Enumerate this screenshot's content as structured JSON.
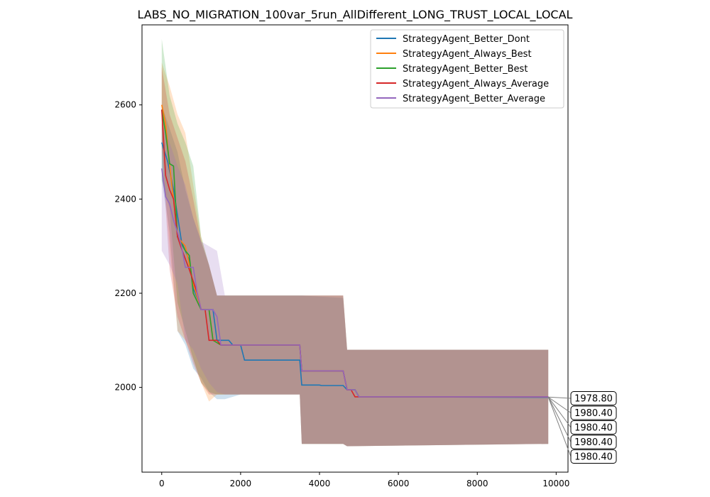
{
  "chart_data": {
    "type": "line",
    "title": "LABS_NO_MIGRATION_100var_5run_AllDifferent_LONG_TRUST_LOCAL_LOCAL",
    "xlabel": "",
    "ylabel": "",
    "xlim": [
      -500,
      10300
    ],
    "ylim": [
      1820,
      2770
    ],
    "xticks": [
      0,
      2000,
      4000,
      6000,
      8000,
      10000
    ],
    "yticks": [
      2000,
      2200,
      2400,
      2600
    ],
    "grid": false,
    "legend_position": "top-right",
    "series": [
      {
        "name": "StrategyAgent_Better_Dont",
        "color": "#1f77b4",
        "points": [
          [
            0,
            2520
          ],
          [
            150,
            2480
          ],
          [
            300,
            2420
          ],
          [
            500,
            2310
          ],
          [
            700,
            2270
          ],
          [
            800,
            2210
          ],
          [
            950,
            2180
          ],
          [
            1000,
            2165
          ],
          [
            1300,
            2165
          ],
          [
            1400,
            2100
          ],
          [
            1700,
            2100
          ],
          [
            1800,
            2090
          ],
          [
            2000,
            2090
          ],
          [
            2100,
            2058
          ],
          [
            3500,
            2058
          ],
          [
            3550,
            2005
          ],
          [
            4000,
            2005
          ],
          [
            4050,
            2004
          ],
          [
            4600,
            2004
          ],
          [
            4700,
            1995
          ],
          [
            4900,
            1995
          ],
          [
            5000,
            1980
          ],
          [
            9800,
            1979
          ]
        ],
        "band": [
          [
            0,
            2440,
            2600
          ],
          [
            200,
            2330,
            2550
          ],
          [
            400,
            2120,
            2500
          ],
          [
            600,
            2090,
            2420
          ],
          [
            800,
            2040,
            2360
          ],
          [
            1000,
            2020,
            2310
          ],
          [
            1200,
            1990,
            2260
          ],
          [
            1400,
            1975,
            2195
          ],
          [
            1600,
            1975,
            2195
          ],
          [
            2000,
            1985,
            2195
          ],
          [
            3500,
            1985,
            2195
          ],
          [
            3550,
            1880,
            2195
          ],
          [
            4600,
            1880,
            2190
          ],
          [
            4700,
            1875,
            2080
          ],
          [
            9800,
            1880,
            2080
          ]
        ]
      },
      {
        "name": "StrategyAgent_Always_Best",
        "color": "#ff7f0e",
        "points": [
          [
            0,
            2600
          ],
          [
            100,
            2560
          ],
          [
            200,
            2470
          ],
          [
            300,
            2400
          ],
          [
            400,
            2320
          ],
          [
            600,
            2300
          ],
          [
            800,
            2220
          ],
          [
            1000,
            2165
          ],
          [
            1200,
            2165
          ],
          [
            1300,
            2100
          ],
          [
            1500,
            2090
          ],
          [
            3500,
            2090
          ],
          [
            3550,
            2035
          ],
          [
            4600,
            2035
          ],
          [
            4700,
            1995
          ],
          [
            4900,
            1995
          ],
          [
            5000,
            1980
          ],
          [
            9800,
            1980
          ]
        ],
        "band": [
          [
            0,
            2510,
            2690
          ],
          [
            200,
            2300,
            2640
          ],
          [
            400,
            2120,
            2580
          ],
          [
            600,
            2100,
            2540
          ],
          [
            800,
            2060,
            2430
          ],
          [
            1000,
            2010,
            2320
          ],
          [
            1200,
            1970,
            2260
          ],
          [
            1400,
            1985,
            2195
          ],
          [
            3500,
            1985,
            2195
          ],
          [
            3550,
            1880,
            2195
          ],
          [
            4600,
            1880,
            2195
          ],
          [
            4700,
            1875,
            2080
          ],
          [
            9800,
            1880,
            2080
          ]
        ]
      },
      {
        "name": "StrategyAgent_Better_Best",
        "color": "#2ca02c",
        "points": [
          [
            0,
            2590
          ],
          [
            100,
            2540
          ],
          [
            200,
            2475
          ],
          [
            300,
            2470
          ],
          [
            400,
            2320
          ],
          [
            600,
            2290
          ],
          [
            700,
            2280
          ],
          [
            800,
            2200
          ],
          [
            1000,
            2165
          ],
          [
            1200,
            2165
          ],
          [
            1300,
            2100
          ],
          [
            1500,
            2090
          ],
          [
            3500,
            2090
          ],
          [
            3550,
            2035
          ],
          [
            4600,
            2035
          ],
          [
            4700,
            1995
          ],
          [
            4900,
            1995
          ],
          [
            5000,
            1980
          ],
          [
            9800,
            1980
          ]
        ],
        "band": [
          [
            0,
            2440,
            2740
          ],
          [
            200,
            2380,
            2620
          ],
          [
            400,
            2180,
            2560
          ],
          [
            600,
            2120,
            2520
          ],
          [
            800,
            2060,
            2470
          ],
          [
            1000,
            2010,
            2320
          ],
          [
            1200,
            1990,
            2260
          ],
          [
            1400,
            1985,
            2195
          ],
          [
            3500,
            1985,
            2195
          ],
          [
            3550,
            1880,
            2195
          ],
          [
            4600,
            1880,
            2195
          ],
          [
            4700,
            1875,
            2080
          ],
          [
            9800,
            1880,
            2080
          ]
        ]
      },
      {
        "name": "StrategyAgent_Always_Average",
        "color": "#d62728",
        "points": [
          [
            0,
            2590
          ],
          [
            100,
            2450
          ],
          [
            200,
            2420
          ],
          [
            300,
            2400
          ],
          [
            400,
            2320
          ],
          [
            500,
            2295
          ],
          [
            700,
            2250
          ],
          [
            900,
            2200
          ],
          [
            1000,
            2165
          ],
          [
            1100,
            2165
          ],
          [
            1200,
            2100
          ],
          [
            1400,
            2100
          ],
          [
            1500,
            2090
          ],
          [
            3500,
            2090
          ],
          [
            3550,
            2035
          ],
          [
            4600,
            2035
          ],
          [
            4700,
            1995
          ],
          [
            4800,
            1995
          ],
          [
            4900,
            1980
          ],
          [
            9800,
            1980
          ]
        ],
        "band": [
          [
            0,
            2510,
            2680
          ],
          [
            200,
            2250,
            2580
          ],
          [
            400,
            2150,
            2530
          ],
          [
            600,
            2100,
            2480
          ],
          [
            800,
            2050,
            2400
          ],
          [
            1000,
            2010,
            2310
          ],
          [
            1200,
            1985,
            2260
          ],
          [
            1400,
            1985,
            2195
          ],
          [
            3500,
            1985,
            2195
          ],
          [
            3550,
            1880,
            2195
          ],
          [
            4600,
            1880,
            2195
          ],
          [
            4700,
            1875,
            2080
          ],
          [
            9800,
            1880,
            2080
          ]
        ]
      },
      {
        "name": "StrategyAgent_Better_Average",
        "color": "#9467bd",
        "points": [
          [
            0,
            2465
          ],
          [
            100,
            2405
          ],
          [
            200,
            2390
          ],
          [
            300,
            2355
          ],
          [
            400,
            2330
          ],
          [
            500,
            2300
          ],
          [
            600,
            2255
          ],
          [
            800,
            2255
          ],
          [
            900,
            2200
          ],
          [
            1000,
            2165
          ],
          [
            1300,
            2165
          ],
          [
            1400,
            2150
          ],
          [
            1500,
            2090
          ],
          [
            3500,
            2090
          ],
          [
            3550,
            2035
          ],
          [
            4600,
            2035
          ],
          [
            4700,
            1995
          ],
          [
            4900,
            1995
          ],
          [
            5000,
            1980
          ],
          [
            9800,
            1980
          ]
        ],
        "band": [
          [
            0,
            2290,
            2560
          ],
          [
            200,
            2260,
            2520
          ],
          [
            400,
            2220,
            2470
          ],
          [
            600,
            2100,
            2430
          ],
          [
            800,
            2080,
            2360
          ],
          [
            1000,
            2040,
            2310
          ],
          [
            1200,
            2010,
            2300
          ],
          [
            1400,
            1990,
            2290
          ],
          [
            1600,
            1985,
            2195
          ],
          [
            3500,
            1985,
            2195
          ],
          [
            3550,
            1880,
            2195
          ],
          [
            4600,
            1880,
            2195
          ],
          [
            4700,
            1875,
            2080
          ],
          [
            9800,
            1880,
            2080
          ]
        ]
      }
    ],
    "annotations": [
      "1978.80",
      "1980.40",
      "1980.40",
      "1980.40",
      "1980.40"
    ],
    "annotation_anchor": [
      9800,
      1979.5
    ]
  }
}
